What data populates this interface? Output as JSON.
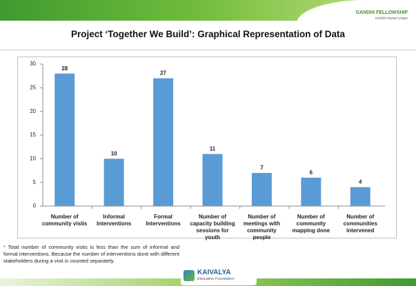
{
  "header": {
    "logo": "GANDHI FELLOWSHIP",
    "tagline": "unfold impact enjoy"
  },
  "chart_data": {
    "type": "bar",
    "title": "Project ‘Together We Build’: Graphical Representation of Data",
    "categories": [
      "Number of community visits",
      "Informal Interventions",
      "Formal Interventions",
      "Number of capacity building sessions for youth",
      "Number of meetings with community people",
      "Number of community mapping done",
      "Number of communities intervened"
    ],
    "values": [
      28,
      10,
      27,
      11,
      7,
      6,
      4
    ],
    "color": "#5b9bd5",
    "ylim": [
      0,
      30
    ],
    "yticks": [
      0,
      5,
      10,
      15,
      20,
      25,
      30
    ],
    "grid": false
  },
  "footnote": {
    "marker": "*",
    "text": "Total number of community visits is less than the sum of informal and formal interventions. Because the number of interventions done with different stakeholders during a visit is counted separately."
  },
  "footer": {
    "logo": "KAIVALYA",
    "tagline": "Education Foundation"
  }
}
